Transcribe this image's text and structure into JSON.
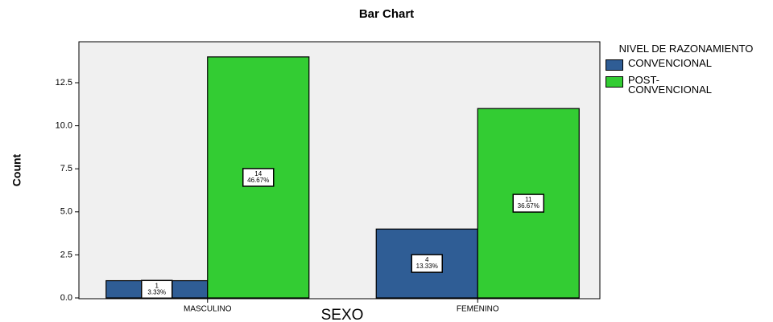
{
  "chart_data": {
    "type": "bar",
    "title": "Bar Chart",
    "x_label": "SEXO",
    "y_label": "Count",
    "categories": [
      "MASCULINO",
      "FEMENINO"
    ],
    "legend_title": "NIVEL DE RAZONAMIENTO",
    "series": [
      {
        "name": "CONVENCIONAL",
        "color": "#2f5d95",
        "values": [
          1,
          4
        ],
        "percent_labels": [
          "3.33%",
          "13.33%"
        ]
      },
      {
        "name": "POST-CONVENCIONAL",
        "color": "#33cc33",
        "values": [
          14,
          11
        ],
        "percent_labels": [
          "46.67%",
          "36.67%"
        ]
      }
    ],
    "ylim": [
      0,
      14.88
    ],
    "yticks": [
      {
        "value": 0,
        "label": "0.0"
      },
      2.5,
      {
        "value": 5,
        "label": "5.0"
      },
      7.5,
      {
        "value": 10,
        "label": "10.0"
      },
      12.5
    ],
    "legend": "right"
  }
}
